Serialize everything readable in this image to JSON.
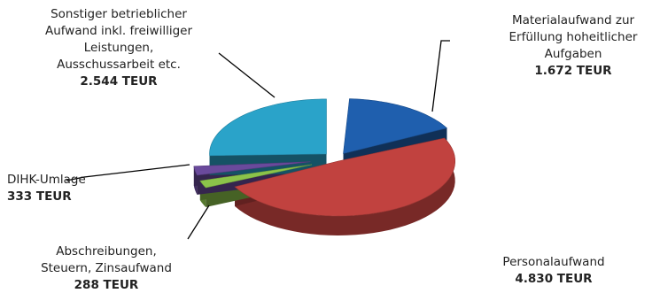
{
  "chart_data": {
    "type": "pie",
    "style": "3d-exploded",
    "slices": [
      {
        "label": "Materialaufwand zur Erfüllung hoheitlicher Aufgaben",
        "value": 1672,
        "value_text": "1.672 TEUR",
        "color": "#1f5fae"
      },
      {
        "label": "Personalaufwand",
        "value": 4830,
        "value_text": "4.830 TEUR",
        "color": "#c1423f"
      },
      {
        "label": "Abschreibungen, Steuern, Zinsaufwand",
        "value": 288,
        "value_text": "288 TEUR",
        "color": "#8bc34a"
      },
      {
        "label": "DIHK-Umlage",
        "value": 333,
        "value_text": "333 TEUR",
        "color": "#6a4a9c"
      },
      {
        "label": "Sonstiger betrieblicher Aufwand inkl. freiwilliger Leistungen, Ausschussarbeit etc.",
        "value": 2544,
        "value_text": "2.544 TEUR",
        "color": "#2aa3c9"
      }
    ]
  },
  "labels": {
    "material": {
      "lines": [
        "Materialaufwand zur",
        "Erfüllung hoheitlicher",
        "Aufgaben"
      ],
      "value": "1.672 TEUR"
    },
    "personal": {
      "lines": [
        "Personalaufwand"
      ],
      "value": "4.830 TEUR"
    },
    "abschreibungen": {
      "lines": [
        "Abschreibungen,",
        "Steuern, Zinsaufwand"
      ],
      "value": "288 TEUR"
    },
    "dihk": {
      "lines": [
        "DIHK-Umlage"
      ],
      "value": "333 TEUR"
    },
    "sonstiger": {
      "lines": [
        "Sonstiger  betrieblicher",
        "Aufwand  inkl. freiwilliger",
        "Leistungen,",
        "Ausschussarbeit etc."
      ],
      "value": "2.544 TEUR"
    }
  }
}
